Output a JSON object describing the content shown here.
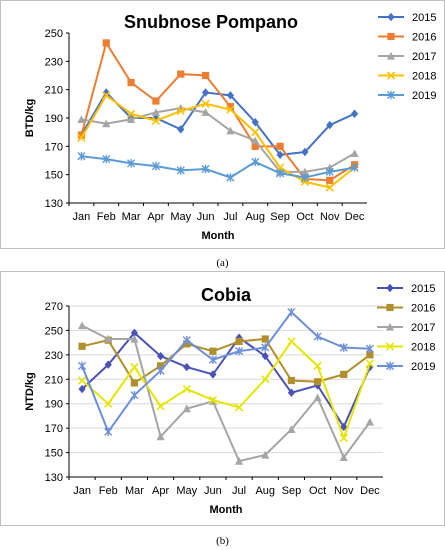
{
  "captions": [
    "(a)",
    "(b)"
  ],
  "chart_data": [
    {
      "type": "line",
      "title": "Snubnose Pompano",
      "xlabel": "Month",
      "ylabel": "BTD/kg",
      "categories": [
        "Jan",
        "Feb",
        "Mar",
        "Apr",
        "May",
        "Jun",
        "Jul",
        "Aug",
        "Sep",
        "Oct",
        "Nov",
        "Dec"
      ],
      "ylim": [
        130,
        250
      ],
      "yticks": [
        130,
        150,
        170,
        190,
        210,
        230,
        250
      ],
      "grid": false,
      "legend": "right",
      "series": [
        {
          "name": "2015",
          "color": "#4472c4",
          "marker": "diamond",
          "values": [
            178,
            208,
            190,
            190,
            182,
            208,
            206,
            187,
            164,
            166,
            185,
            193
          ]
        },
        {
          "name": "2016",
          "color": "#ed7d31",
          "marker": "square",
          "values": [
            178,
            243,
            215,
            202,
            221,
            220,
            198,
            170,
            170,
            147,
            146,
            157
          ]
        },
        {
          "name": "2017",
          "color": "#a5a5a5",
          "marker": "triangle",
          "values": [
            189,
            186,
            189,
            194,
            197,
            194,
            181,
            174,
            152,
            152,
            155,
            165
          ]
        },
        {
          "name": "2018",
          "color": "#ffc000",
          "marker": "x",
          "values": [
            176,
            206,
            193,
            188,
            195,
            200,
            196,
            180,
            155,
            145,
            141,
            155
          ]
        },
        {
          "name": "2019",
          "color": "#5b9bd5",
          "marker": "star",
          "values": [
            163,
            161,
            158,
            156,
            153,
            154,
            148,
            159,
            151,
            148,
            152,
            155
          ]
        }
      ]
    },
    {
      "type": "line",
      "title": "Cobia",
      "xlabel": "Month",
      "ylabel": "NTD/kg",
      "categories": [
        "Jan",
        "Feb",
        "Mar",
        "Apr",
        "May",
        "Jun",
        "Jul",
        "Aug",
        "Sep",
        "Oct",
        "Nov",
        "Dec"
      ],
      "ylim": [
        130,
        270
      ],
      "yticks": [
        130,
        150,
        170,
        190,
        210,
        230,
        250,
        270
      ],
      "grid": true,
      "legend": "right",
      "series": [
        {
          "name": "2015",
          "color": "#4a52b8",
          "marker": "diamond",
          "values": [
            202,
            222,
            248,
            229,
            220,
            214,
            244,
            229,
            199,
            205,
            171,
            220
          ]
        },
        {
          "name": "2016",
          "color": "#b08f2c",
          "marker": "square",
          "values": [
            237,
            242,
            207,
            221,
            239,
            233,
            241,
            243,
            209,
            208,
            214,
            230
          ]
        },
        {
          "name": "2017",
          "color": "#a5a5a5",
          "marker": "triangle",
          "values": [
            254,
            243,
            243,
            163,
            186,
            192,
            143,
            148,
            169,
            195,
            146,
            175
          ]
        },
        {
          "name": "2018",
          "color": "#e6e600",
          "marker": "x",
          "values": [
            209,
            190,
            220,
            188,
            202,
            193,
            187,
            210,
            241,
            221,
            162,
            223
          ]
        },
        {
          "name": "2019",
          "color": "#6d8fd9",
          "marker": "star",
          "values": [
            221,
            167,
            197,
            217,
            242,
            226,
            233,
            236,
            265,
            245,
            236,
            235
          ]
        }
      ]
    }
  ]
}
